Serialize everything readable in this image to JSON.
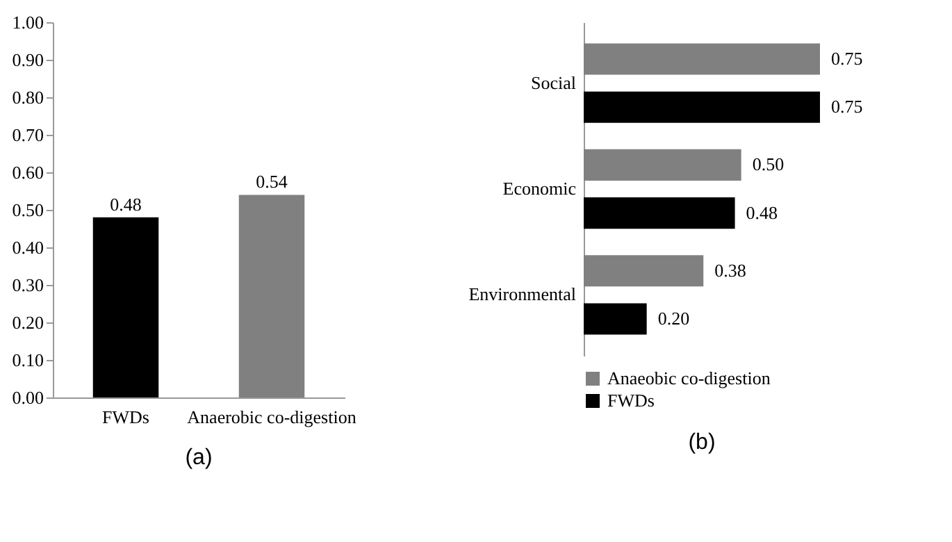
{
  "chart_data": [
    {
      "type": "bar",
      "categories": [
        "FWDs",
        "Anaerobic co-digestion"
      ],
      "values": [
        0.48,
        0.54
      ],
      "colors": [
        "#000000",
        "#808080"
      ],
      "ylim": [
        0,
        1
      ],
      "yticks": [
        {
          "value": 0,
          "label": "0.00"
        },
        {
          "value": 0.1,
          "label": "0.10"
        },
        {
          "value": 0.2,
          "label": "0.20"
        },
        {
          "value": 0.3,
          "label": "0.30"
        },
        {
          "value": 0.4,
          "label": "0.40"
        },
        {
          "value": 0.5,
          "label": "0.50"
        },
        {
          "value": 0.6,
          "label": "0.60"
        },
        {
          "value": 0.7,
          "label": "0.70"
        },
        {
          "value": 0.8,
          "label": "0.80"
        },
        {
          "value": 0.9,
          "label": "0.90"
        },
        {
          "value": 1,
          "label": "1.00"
        }
      ],
      "data_labels": true,
      "annotations": [
        "(a)"
      ]
    },
    {
      "type": "bar",
      "orientation": "horizontal",
      "categories": [
        "Social",
        "Economic",
        "Environmental"
      ],
      "series": [
        {
          "name": "Anaeobic co-digestion",
          "color": "#808080",
          "values": [
            0.75,
            0.5,
            0.38
          ],
          "value_labels": [
            "0.75",
            "0.50",
            "0.38"
          ]
        },
        {
          "name": "FWDs",
          "color": "#000000",
          "values": [
            0.75,
            0.48,
            0.2
          ],
          "value_labels": [
            "0.75",
            "0.48",
            "0.20"
          ]
        }
      ],
      "legend": "bottom",
      "annotations": [
        "(b)"
      ]
    }
  ]
}
